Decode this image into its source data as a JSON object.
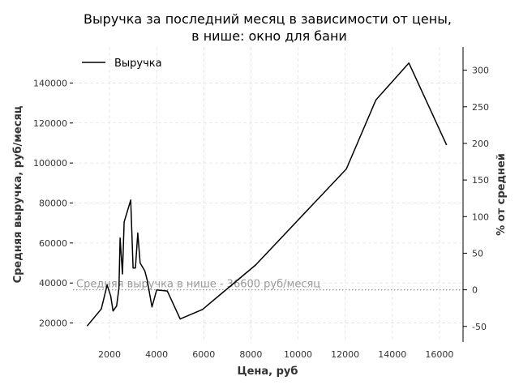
{
  "chart_data": {
    "type": "line",
    "title_line1": "Выручка за последний месяц в зависимости от цены,",
    "title_line2": "в нише: окно для бани",
    "xlabel": "Цена, руб",
    "ylabel": "Средняя выручка, руб/месяц",
    "y2label": "% от средней",
    "xlim": [
      450,
      17000
    ],
    "ylim": [
      10500,
      158000
    ],
    "grid": true,
    "legend": "top-left",
    "x_ticks": [
      2000,
      4000,
      6000,
      8000,
      10000,
      12000,
      14000,
      16000
    ],
    "y_ticks": [
      20000,
      40000,
      60000,
      80000,
      100000,
      120000,
      140000
    ],
    "y2_ticks": [
      -50,
      0,
      50,
      100,
      150,
      200,
      250,
      300
    ],
    "average": 36600,
    "average_label": "Средняя выручка в нише - 36600 руб/месяц",
    "series": [
      {
        "name": "Выручка",
        "color": "#000000",
        "x": [
          1050,
          1650,
          1900,
          2050,
          2150,
          2300,
          2400,
          2450,
          2550,
          2620,
          2900,
          3000,
          3100,
          3200,
          3300,
          3500,
          3600,
          3800,
          4000,
          4450,
          5000,
          5950,
          8200,
          12050,
          13300,
          14700,
          16300
        ],
        "y": [
          18500,
          27000,
          39000,
          33500,
          26000,
          28500,
          37500,
          62500,
          44500,
          70500,
          81500,
          47500,
          47500,
          65000,
          50000,
          46000,
          41500,
          28000,
          36500,
          36000,
          22000,
          26800,
          49000,
          97000,
          131500,
          150000,
          109000
        ]
      }
    ]
  }
}
